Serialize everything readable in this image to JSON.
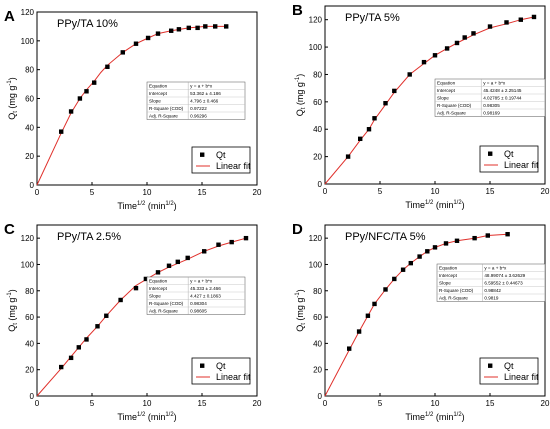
{
  "chart_data": [
    {
      "type": "scatter",
      "panel_letter": "A",
      "title": "PPy/TA 10%",
      "xlabel_base": "Time",
      "xlabel_sup": "1/2",
      "xlabel_unit_open": " (min",
      "xlabel_unit_sup": "1/2",
      "xlabel_unit_close": ")",
      "ylabel_text": "Q",
      "ylabel_sub": "t",
      "ylabel_unit": " (mg g",
      "ylabel_unit_sup": "-1",
      "ylabel_unit_close": ")",
      "xlim": [
        0,
        20
      ],
      "ylim": [
        0,
        120
      ],
      "xticks": [
        "0",
        "5",
        "10",
        "15",
        "20"
      ],
      "yticks": [
        "0",
        "20",
        "40",
        "60",
        "80",
        "100",
        "120"
      ],
      "grid": false,
      "legend_position": "bottom-right",
      "series": [
        {
          "name": "Qt",
          "kind": "points",
          "x": [
            2.2,
            3.1,
            3.9,
            4.5,
            5.2,
            6.4,
            7.8,
            9.0,
            10.1,
            11.0,
            12.2,
            12.9,
            13.8,
            14.6,
            15.3,
            16.2,
            17.2
          ],
          "y": [
            37,
            51,
            60,
            65,
            71,
            82,
            92,
            98,
            102,
            105,
            107,
            108,
            109,
            109,
            110,
            110,
            110
          ]
        },
        {
          "name": "Linear fit",
          "kind": "fit",
          "x": [
            0,
            2.2,
            3.1,
            3.9,
            4.5,
            5.2,
            5.8,
            6.4,
            7.8,
            9.0,
            10.1,
            11.0,
            12.2,
            13.8,
            15.3,
            17.2
          ],
          "y": [
            0,
            36,
            50,
            60,
            66,
            72,
            78,
            83,
            92,
            98,
            102,
            105,
            107,
            109,
            110,
            110
          ]
        }
      ],
      "fit_table": {
        "rows": [
          [
            "Equation",
            "y = a + b*x"
          ],
          [
            "Intercept",
            "53.362 ± 4.186"
          ],
          [
            "Slope",
            "4.796 ± 0.466"
          ],
          [
            "R-Square (COD)",
            "0.97222"
          ],
          [
            "Adj. R-Square",
            "0.96296"
          ]
        ]
      },
      "colors": {
        "points": "#000000",
        "fit": "#e0302b"
      }
    },
    {
      "type": "scatter",
      "panel_letter": "B",
      "title": "PPy/TA 5%",
      "xlabel_base": "Time",
      "xlabel_sup": "1/2",
      "xlabel_unit_open": " (min",
      "xlabel_unit_sup": "1/2",
      "xlabel_unit_close": ")",
      "ylabel_text": "Q",
      "ylabel_sub": "t",
      "ylabel_unit": " (mg g",
      "ylabel_unit_sup": "-1",
      "ylabel_unit_close": ")",
      "xlim": [
        0,
        20
      ],
      "ylim": [
        0,
        130
      ],
      "xticks": [
        "0",
        "5",
        "10",
        "15",
        "20"
      ],
      "yticks": [
        "0",
        "20",
        "40",
        "60",
        "80",
        "100",
        "120"
      ],
      "grid": false,
      "legend_position": "bottom-right",
      "series": [
        {
          "name": "Qt",
          "kind": "points",
          "x": [
            2.1,
            3.2,
            4.0,
            4.5,
            5.5,
            6.3,
            7.7,
            9.0,
            10.0,
            11.1,
            12.0,
            12.7,
            13.5,
            15.0,
            16.5,
            17.8,
            19.0
          ],
          "y": [
            20,
            33,
            40,
            48,
            59,
            68,
            80,
            89,
            94,
            99,
            103,
            107,
            110,
            115,
            118,
            120,
            122
          ]
        },
        {
          "name": "Linear fit",
          "kind": "fit",
          "x": [
            0,
            2.1,
            3.2,
            4.0,
            4.5,
            5.5,
            6.3,
            7.7,
            9.0,
            10.0,
            11.1,
            12.0,
            13.5,
            15.0,
            16.5,
            17.8,
            19.0
          ],
          "y": [
            0,
            20,
            32,
            40,
            47,
            58,
            67,
            80,
            88,
            94,
            99,
            103,
            109,
            114,
            117,
            120,
            122
          ]
        }
      ],
      "fit_table": {
        "rows": [
          [
            "Equation",
            "y = a + b*x"
          ],
          [
            "Intercept",
            "45.4248 ± 2.25145"
          ],
          [
            "Slope",
            "4.02785 ± 0.19744"
          ],
          [
            "R-Square (COD)",
            "0.98305"
          ],
          [
            "Adj. R-Square",
            "0.98169"
          ]
        ]
      },
      "colors": {
        "points": "#000000",
        "fit": "#e0302b"
      }
    },
    {
      "type": "scatter",
      "panel_letter": "C",
      "title": "PPy/TA 2.5%",
      "xlabel_base": "Time",
      "xlabel_sup": "1/2",
      "xlabel_unit_open": " (min",
      "xlabel_unit_sup": "1/2",
      "xlabel_unit_close": ")",
      "ylabel_text": "Q",
      "ylabel_sub": "t",
      "ylabel_unit": " (mg g",
      "ylabel_unit_sup": "-1",
      "ylabel_unit_close": ")",
      "xlim": [
        0,
        20
      ],
      "ylim": [
        0,
        130
      ],
      "xticks": [
        "0",
        "5",
        "10",
        "15",
        "20"
      ],
      "yticks": [
        "0",
        "20",
        "40",
        "60",
        "80",
        "100",
        "120"
      ],
      "grid": false,
      "legend_position": "bottom-right",
      "series": [
        {
          "name": "Qt",
          "kind": "points",
          "x": [
            2.2,
            3.1,
            3.8,
            4.5,
            5.5,
            6.3,
            7.6,
            9.0,
            9.9,
            11.0,
            12.0,
            12.8,
            13.7,
            15.2,
            16.5,
            17.7,
            19.0
          ],
          "y": [
            22,
            29,
            37,
            43,
            53,
            61,
            73,
            82,
            89,
            94,
            99,
            102,
            105,
            110,
            115,
            117,
            120
          ]
        },
        {
          "name": "Linear fit",
          "kind": "fit",
          "x": [
            0,
            2.2,
            3.1,
            3.8,
            4.5,
            5.5,
            6.3,
            7.6,
            9.0,
            10.0,
            11.0,
            12.0,
            13.7,
            15.2,
            16.5,
            17.7,
            19.0
          ],
          "y": [
            0,
            21,
            30,
            37,
            44,
            53,
            61,
            73,
            84,
            89,
            94,
            98,
            104,
            110,
            114,
            117,
            120
          ]
        }
      ],
      "fit_table": {
        "rows": [
          [
            "Equation",
            "y = a + b*x"
          ],
          [
            "Intercept",
            "45.333 ± 2.466"
          ],
          [
            "Slope",
            "4.427 ± 0.1863"
          ],
          [
            "R-Square (COD)",
            "0.98304"
          ],
          [
            "Adj. R-Square",
            "0.98605"
          ]
        ]
      },
      "colors": {
        "points": "#000000",
        "fit": "#e0302b"
      }
    },
    {
      "type": "scatter",
      "panel_letter": "D",
      "title": "PPy/NFC/TA 5%",
      "xlabel_base": "Time",
      "xlabel_sup": "1/2",
      "xlabel_unit_open": " (min",
      "xlabel_unit_sup": "1/2",
      "xlabel_unit_close": ")",
      "ylabel_text": "Q",
      "ylabel_sub": "t",
      "ylabel_unit": " (mg g",
      "ylabel_unit_sup": "-1",
      "ylabel_unit_close": ")",
      "xlim": [
        0,
        20
      ],
      "ylim": [
        0,
        130
      ],
      "xticks": [
        "0",
        "5",
        "10",
        "15",
        "20"
      ],
      "yticks": [
        "0",
        "20",
        "40",
        "60",
        "80",
        "100",
        "120"
      ],
      "grid": false,
      "legend_position": "bottom-right",
      "series": [
        {
          "name": "Qt",
          "kind": "points",
          "x": [
            2.2,
            3.1,
            3.9,
            4.5,
            5.5,
            6.3,
            7.1,
            7.8,
            8.6,
            9.3,
            10.0,
            11.0,
            12.0,
            13.6,
            14.8,
            16.6
          ],
          "y": [
            36,
            49,
            61,
            70,
            81,
            89,
            96,
            101,
            106,
            110,
            113,
            116,
            118,
            120,
            122,
            123
          ]
        },
        {
          "name": "Linear fit",
          "kind": "fit",
          "x": [
            0,
            2.2,
            3.1,
            3.9,
            4.5,
            5.5,
            6.3,
            7.1,
            7.8,
            8.6,
            9.3,
            10.0,
            11.0,
            12.0,
            13.6,
            14.8,
            16.6
          ],
          "y": [
            0,
            35,
            49,
            61,
            70,
            81,
            89,
            96,
            101,
            106,
            110,
            113,
            116,
            118,
            120,
            122,
            123
          ]
        }
      ],
      "fit_table": {
        "rows": [
          [
            "Equation",
            "y = a + b*x"
          ],
          [
            "Intercept",
            "48.99074 ± 3.62629"
          ],
          [
            "Slope",
            "6.59552 ± 0.44673"
          ],
          [
            "R-Square (COD)",
            "0.98842"
          ],
          [
            "Adj. R-Square",
            "0.9819"
          ]
        ]
      },
      "colors": {
        "points": "#000000",
        "fit": "#e0302b"
      }
    }
  ]
}
